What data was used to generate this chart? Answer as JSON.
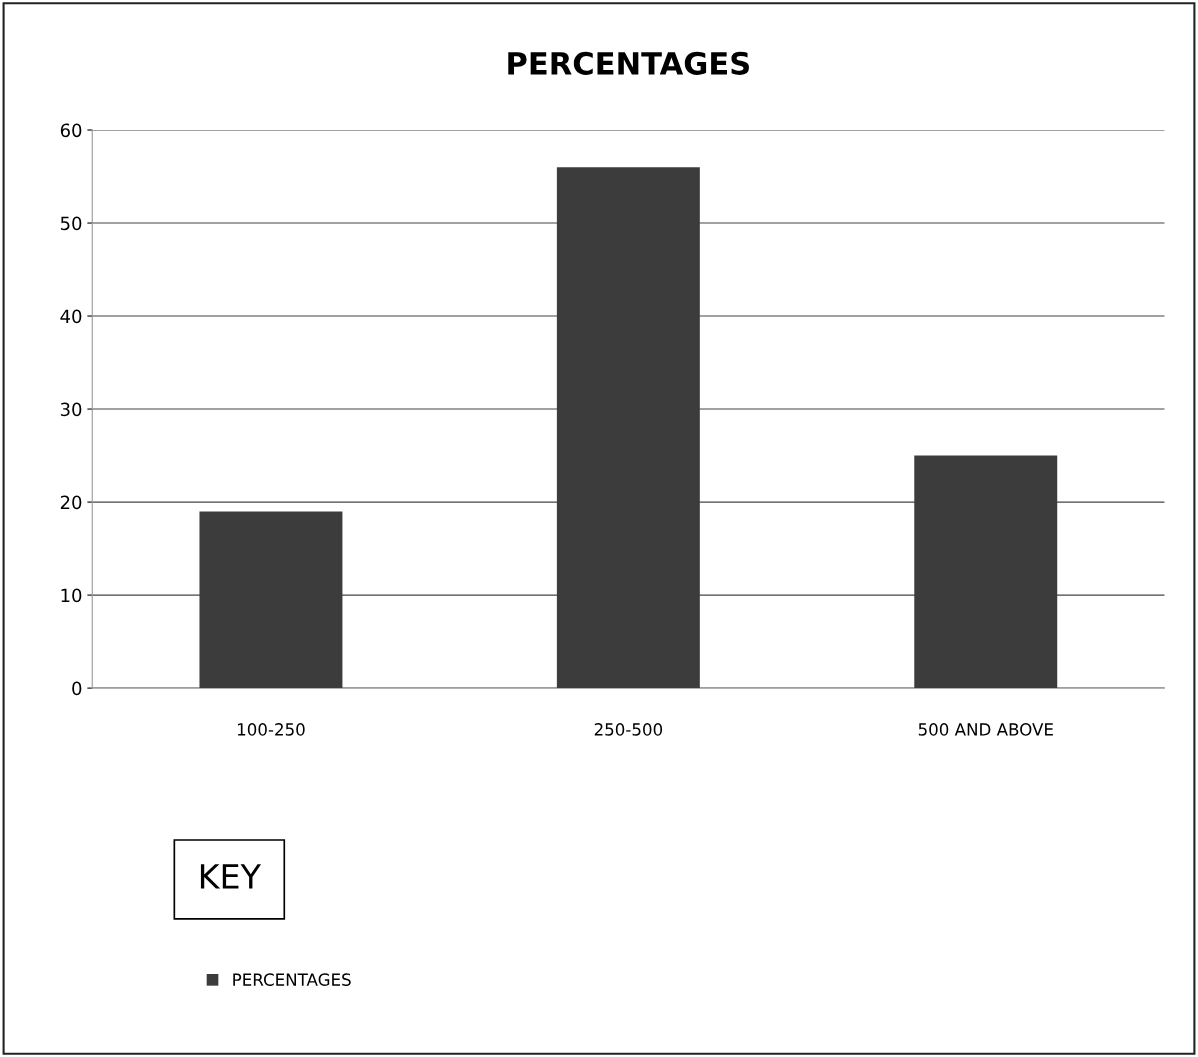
{
  "chart_data": {
    "type": "bar",
    "title": "PERCENTAGES",
    "categories": [
      "100-250",
      "250-500",
      "500 AND ABOVE"
    ],
    "series": [
      {
        "name": "PERCENTAGES",
        "color": "#3c3c3c",
        "values": [
          19,
          56,
          25
        ]
      }
    ],
    "ylim": [
      0,
      60
    ],
    "yticks": [
      0,
      10,
      20,
      30,
      40,
      50,
      60
    ],
    "grid": "y",
    "legend": "bottom left",
    "annotations": [
      "KEY"
    ]
  }
}
